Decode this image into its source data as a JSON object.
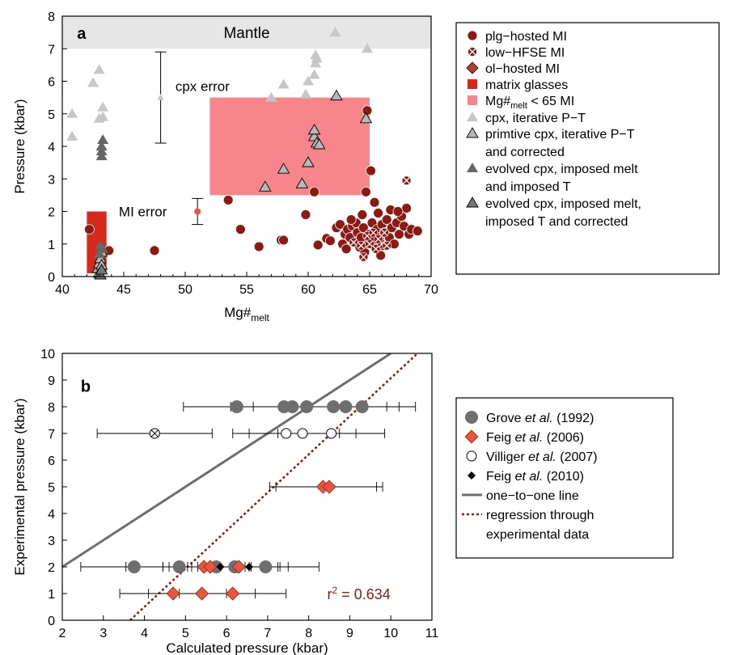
{
  "colors": {
    "plg": "#8b1a14",
    "matrix": "#d6281b",
    "low_mg": "#f7858b",
    "feig2006": "#e8553d",
    "cpx_light": "#c7c7c7",
    "cpx_mid": "#9a9a9a",
    "cpx_dark": "#666666",
    "grove": "#6e6e6e",
    "one_to_one": "#6e6e6e",
    "regression": "#8b1a14",
    "mantle": "#e6e6e6"
  },
  "chart_data": [
    {
      "panel": "a",
      "type": "scatter",
      "xlabel": "Mg#",
      "xlabel_sub": "melt",
      "ylabel": "Pressure (kbar)",
      "xlim": [
        40,
        70
      ],
      "ylim": [
        0,
        8
      ],
      "xticks": [
        "40",
        "45",
        "50",
        "55",
        "60",
        "65",
        "70"
      ],
      "yticks": [
        "0",
        "1",
        "2",
        "3",
        "4",
        "5",
        "6",
        "7",
        "8"
      ],
      "annotations": {
        "mantle": "Mantle",
        "cpx_error": "cpx error",
        "mi_error": "MI error"
      },
      "mantle_band": [
        7,
        8
      ],
      "matrix_glasses_box": {
        "x": [
          42,
          43.6
        ],
        "y": [
          0.1,
          2.0
        ]
      },
      "low_mg_box": {
        "x": [
          52,
          65
        ],
        "y": [
          2.5,
          5.5
        ]
      },
      "cpx_error_bar": {
        "x": 48,
        "y": 5.5,
        "ylow": 4.1,
        "yhigh": 6.9
      },
      "mi_error_bar": {
        "x": 51,
        "y": 2.0,
        "ylow": 1.6,
        "yhigh": 2.4
      },
      "legend": [
        {
          "label": "plg−hosted MI",
          "sub": "",
          "post": ""
        },
        {
          "label": "low−HFSE MI",
          "sub": "",
          "post": ""
        },
        {
          "label": "ol−hosted MI",
          "sub": "",
          "post": ""
        },
        {
          "label": "matrix glasses",
          "sub": "",
          "post": ""
        },
        {
          "label": "Mg#",
          "sub": "melt",
          "post": " < 65 MI"
        },
        {
          "label": "cpx, iterative P−T",
          "sub": "",
          "post": ""
        },
        {
          "label": "primtive cpx, iterative P−T",
          "label2": "and corrected",
          "sub": "",
          "post": ""
        },
        {
          "label": "evolved cpx, imposed melt",
          "label2": "and imposed T",
          "sub": "",
          "post": ""
        },
        {
          "label": "evolved cpx, imposed melt,",
          "label2": "imposed T and corrected",
          "sub": "",
          "post": ""
        }
      ],
      "series": [
        {
          "name": "plg−hosted MI",
          "marker": "circle",
          "points": [
            [
              42.2,
              1.45
            ],
            [
              43.8,
              0.8
            ],
            [
              47.5,
              0.8
            ],
            [
              53.5,
              2.35
            ],
            [
              54.5,
              1.45
            ],
            [
              56,
              0.92
            ],
            [
              57.8,
              1.12
            ],
            [
              58,
              1.12
            ],
            [
              59.8,
              1.9
            ],
            [
              60.5,
              2.6
            ],
            [
              60.8,
              0.97
            ],
            [
              61.5,
              1.17
            ],
            [
              61.8,
              1.1
            ],
            [
              62.3,
              1.5
            ],
            [
              62.6,
              1.6
            ],
            [
              62.8,
              1.0
            ],
            [
              63.0,
              1.3
            ],
            [
              63.2,
              1.45
            ],
            [
              63.4,
              1.2
            ],
            [
              63.6,
              1.55
            ],
            [
              63.8,
              1.05
            ],
            [
              63.9,
              1.65
            ],
            [
              64.0,
              1.35
            ],
            [
              64.2,
              0.9
            ],
            [
              64.3,
              1.2
            ],
            [
              64.5,
              1.5
            ],
            [
              64.6,
              0.75
            ],
            [
              64.7,
              2.6
            ],
            [
              64.8,
              5.1
            ],
            [
              64.9,
              1.0
            ],
            [
              65.0,
              1.3
            ],
            [
              65.1,
              3.25
            ],
            [
              65.2,
              1.65
            ],
            [
              65.3,
              1.1
            ],
            [
              65.4,
              2.28
            ],
            [
              65.5,
              0.85
            ],
            [
              65.6,
              1.45
            ],
            [
              65.8,
              1.2
            ],
            [
              66.0,
              1.6
            ],
            [
              66.1,
              0.95
            ],
            [
              66.2,
              1.35
            ],
            [
              66.4,
              1.75
            ],
            [
              66.6,
              1.2
            ],
            [
              66.8,
              1.5
            ],
            [
              67.0,
              1.0
            ],
            [
              67.2,
              1.65
            ],
            [
              67.4,
              1.3
            ],
            [
              67.6,
              1.85
            ],
            [
              67.8,
              1.55
            ],
            [
              68.0,
              2.1
            ],
            [
              68.2,
              1.3
            ],
            [
              68.4,
              1.45
            ],
            [
              68.9,
              1.4
            ],
            [
              63.5,
              1.75
            ],
            [
              64.4,
              1.9
            ],
            [
              65.7,
              1.95
            ],
            [
              66.7,
              2.05
            ],
            [
              67.3,
              2.0
            ],
            [
              63.1,
              0.85
            ],
            [
              65.9,
              0.65
            ]
          ]
        },
        {
          "name": "low−HFSE MI",
          "marker": "xcircle",
          "points": [
            [
              64.5,
              0.6
            ],
            [
              65.0,
              1.0
            ],
            [
              65.5,
              0.85
            ],
            [
              66.0,
              1.0
            ],
            [
              66.4,
              0.95
            ],
            [
              64.8,
              1.25
            ],
            [
              65.3,
              1.35
            ],
            [
              66.2,
              1.35
            ],
            [
              63.7,
              1.05
            ],
            [
              65.7,
              1.15
            ],
            [
              64.3,
              0.95
            ],
            [
              68.0,
              2.95
            ]
          ]
        },
        {
          "name": "cpx, iterative P−T",
          "marker": "triangle-light",
          "points": [
            [
              40.8,
              5.0
            ],
            [
              40.8,
              4.3
            ],
            [
              42.5,
              5.95
            ],
            [
              43.0,
              6.35
            ],
            [
              43.0,
              4.85
            ],
            [
              43.3,
              4.9
            ],
            [
              43.3,
              5.2
            ],
            [
              57.0,
              5.5
            ],
            [
              58.0,
              5.9
            ],
            [
              59.8,
              5.6
            ],
            [
              60.0,
              6.0
            ],
            [
              60.5,
              6.2
            ],
            [
              60.6,
              6.55
            ],
            [
              60.7,
              6.7
            ],
            [
              60.6,
              6.8
            ],
            [
              62.2,
              7.5
            ],
            [
              64.8,
              7.0
            ]
          ]
        },
        {
          "name": "primtive cpx, iterative P−T and corrected",
          "marker": "triangle-mid",
          "points": [
            [
              56.5,
              2.75
            ],
            [
              58.0,
              3.3
            ],
            [
              59.5,
              2.85
            ],
            [
              60.0,
              3.5
            ],
            [
              60.5,
              4.3
            ],
            [
              60.5,
              4.5
            ],
            [
              60.7,
              4.1
            ],
            [
              60.9,
              4.05
            ],
            [
              62.3,
              5.55
            ],
            [
              64.7,
              4.85
            ],
            [
              42.9,
              0.25
            ],
            [
              43.0,
              0.4
            ],
            [
              43.1,
              0.55
            ],
            [
              43.2,
              0.75
            ],
            [
              43.0,
              0.1
            ],
            [
              43.2,
              0.35
            ]
          ]
        },
        {
          "name": "evolved cpx, imposed melt and imposed T",
          "marker": "triangle-dark",
          "points": [
            [
              43.2,
              3.7
            ],
            [
              43.2,
              3.85
            ],
            [
              43.2,
              4.0
            ],
            [
              43.3,
              4.2
            ],
            [
              43.1,
              0.95
            ],
            [
              43.3,
              0.85
            ],
            [
              43.0,
              0.7
            ]
          ]
        },
        {
          "name": "evolved cpx, imposed melt, imposed T and corrected",
          "marker": "triangle-darkest",
          "points": [
            [
              43.1,
              0.05
            ],
            [
              43.2,
              0.2
            ]
          ]
        }
      ]
    },
    {
      "panel": "b",
      "type": "scatter",
      "xlabel": "Calculated pressure (kbar)",
      "ylabel": "Experimental pressure (kbar)",
      "xlim": [
        2,
        11
      ],
      "ylim": [
        0,
        10
      ],
      "xticks": [
        "2",
        "3",
        "4",
        "5",
        "6",
        "7",
        "8",
        "9",
        "10",
        "11"
      ],
      "yticks": [
        "0",
        "1",
        "2",
        "3",
        "4",
        "5",
        "6",
        "7",
        "8",
        "9",
        "10"
      ],
      "annotation": {
        "r2_prefix": "r",
        "r2_sup": "2",
        "r2_value": " = 0.634"
      },
      "one_to_one_line": [
        [
          2,
          2
        ],
        [
          10,
          10
        ]
      ],
      "regression_line": [
        [
          3.65,
          0
        ],
        [
          10.65,
          10
        ]
      ],
      "legend": [
        {
          "parts": [
            "Grove ",
            "et al.",
            " (1992)"
          ]
        },
        {
          "parts": [
            "Feig ",
            "et al.",
            " (2006)"
          ]
        },
        {
          "parts": [
            "Villiger ",
            "et al.",
            " (2007)"
          ]
        },
        {
          "parts": [
            "Feig ",
            "et al.",
            " (2010)"
          ]
        },
        {
          "parts": [
            "one−to−one line",
            "",
            ""
          ]
        },
        {
          "parts": [
            "regression through",
            "",
            ""
          ],
          "line2": "experimental data"
        }
      ],
      "series": [
        {
          "name": "Grove et al. (1992)",
          "marker": "circle-grey",
          "points": [
            [
              6.25,
              8,
              1.3
            ],
            [
              7.4,
              8,
              1.3
            ],
            [
              7.6,
              8,
              1.3
            ],
            [
              7.95,
              8,
              1.3
            ],
            [
              8.6,
              8,
              1.3
            ],
            [
              8.9,
              8,
              1.3
            ],
            [
              9.3,
              8,
              1.3
            ],
            [
              3.75,
              2,
              1.3
            ],
            [
              4.85,
              2,
              1.3
            ],
            [
              5.75,
              2,
              1.3
            ],
            [
              6.2,
              2,
              1.3
            ],
            [
              6.95,
              2,
              1.3
            ]
          ]
        },
        {
          "name": "low−HFSE",
          "marker": "xcircle-white",
          "points": [
            [
              4.25,
              7,
              1.4
            ]
          ]
        },
        {
          "name": "Feig et al. (2006)",
          "marker": "diamond",
          "points": [
            [
              8.35,
              5,
              1.3
            ],
            [
              8.5,
              5,
              1.3
            ],
            [
              5.45,
              2,
              1.0
            ],
            [
              5.6,
              2,
              1.0
            ],
            [
              6.3,
              2,
              1.0
            ],
            [
              4.7,
              1,
              1.3
            ],
            [
              5.4,
              1,
              1.3
            ],
            [
              6.15,
              1,
              1.3
            ]
          ]
        },
        {
          "name": "Villiger et al. (2007)",
          "marker": "circle-white",
          "points": [
            [
              7.45,
              7,
              1.3
            ],
            [
              7.85,
              7,
              1.3
            ],
            [
              8.55,
              7,
              1.3
            ]
          ]
        },
        {
          "name": "Feig et al. (2010)",
          "marker": "diamond-black",
          "points": [
            [
              5.85,
              2,
              0.7
            ],
            [
              6.55,
              2,
              0.7
            ]
          ]
        }
      ]
    }
  ]
}
